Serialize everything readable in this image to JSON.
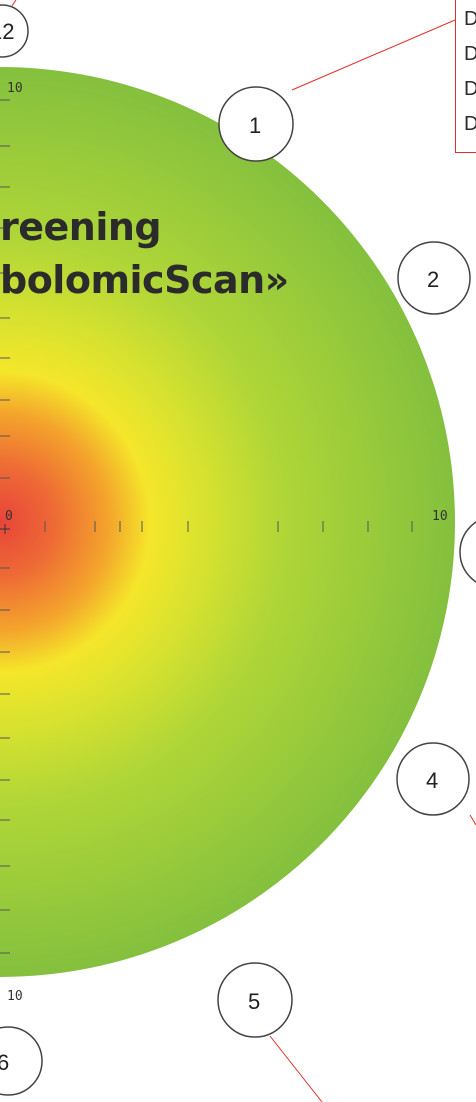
{
  "title": {
    "line1": "reening",
    "line2": "bolomicScan»"
  },
  "legend": {
    "items": [
      "D",
      "D",
      "D",
      "D"
    ],
    "border_color": "#e0302a"
  },
  "axis": {
    "top_label": "10",
    "bottom_label": "10",
    "center_label": "0",
    "right_label": "10"
  },
  "markers": [
    {
      "id": "12",
      "label": "12"
    },
    {
      "id": "1",
      "label": "1"
    },
    {
      "id": "2",
      "label": "2"
    },
    {
      "id": "3",
      "label": ""
    },
    {
      "id": "4",
      "label": "4"
    },
    {
      "id": "5",
      "label": "5"
    },
    {
      "id": "6",
      "label": "6"
    }
  ],
  "colors": {
    "center": "#e8443a",
    "mid": "#f5e62a",
    "outer": "#8cc63e",
    "leader_line": "#e0302a"
  }
}
